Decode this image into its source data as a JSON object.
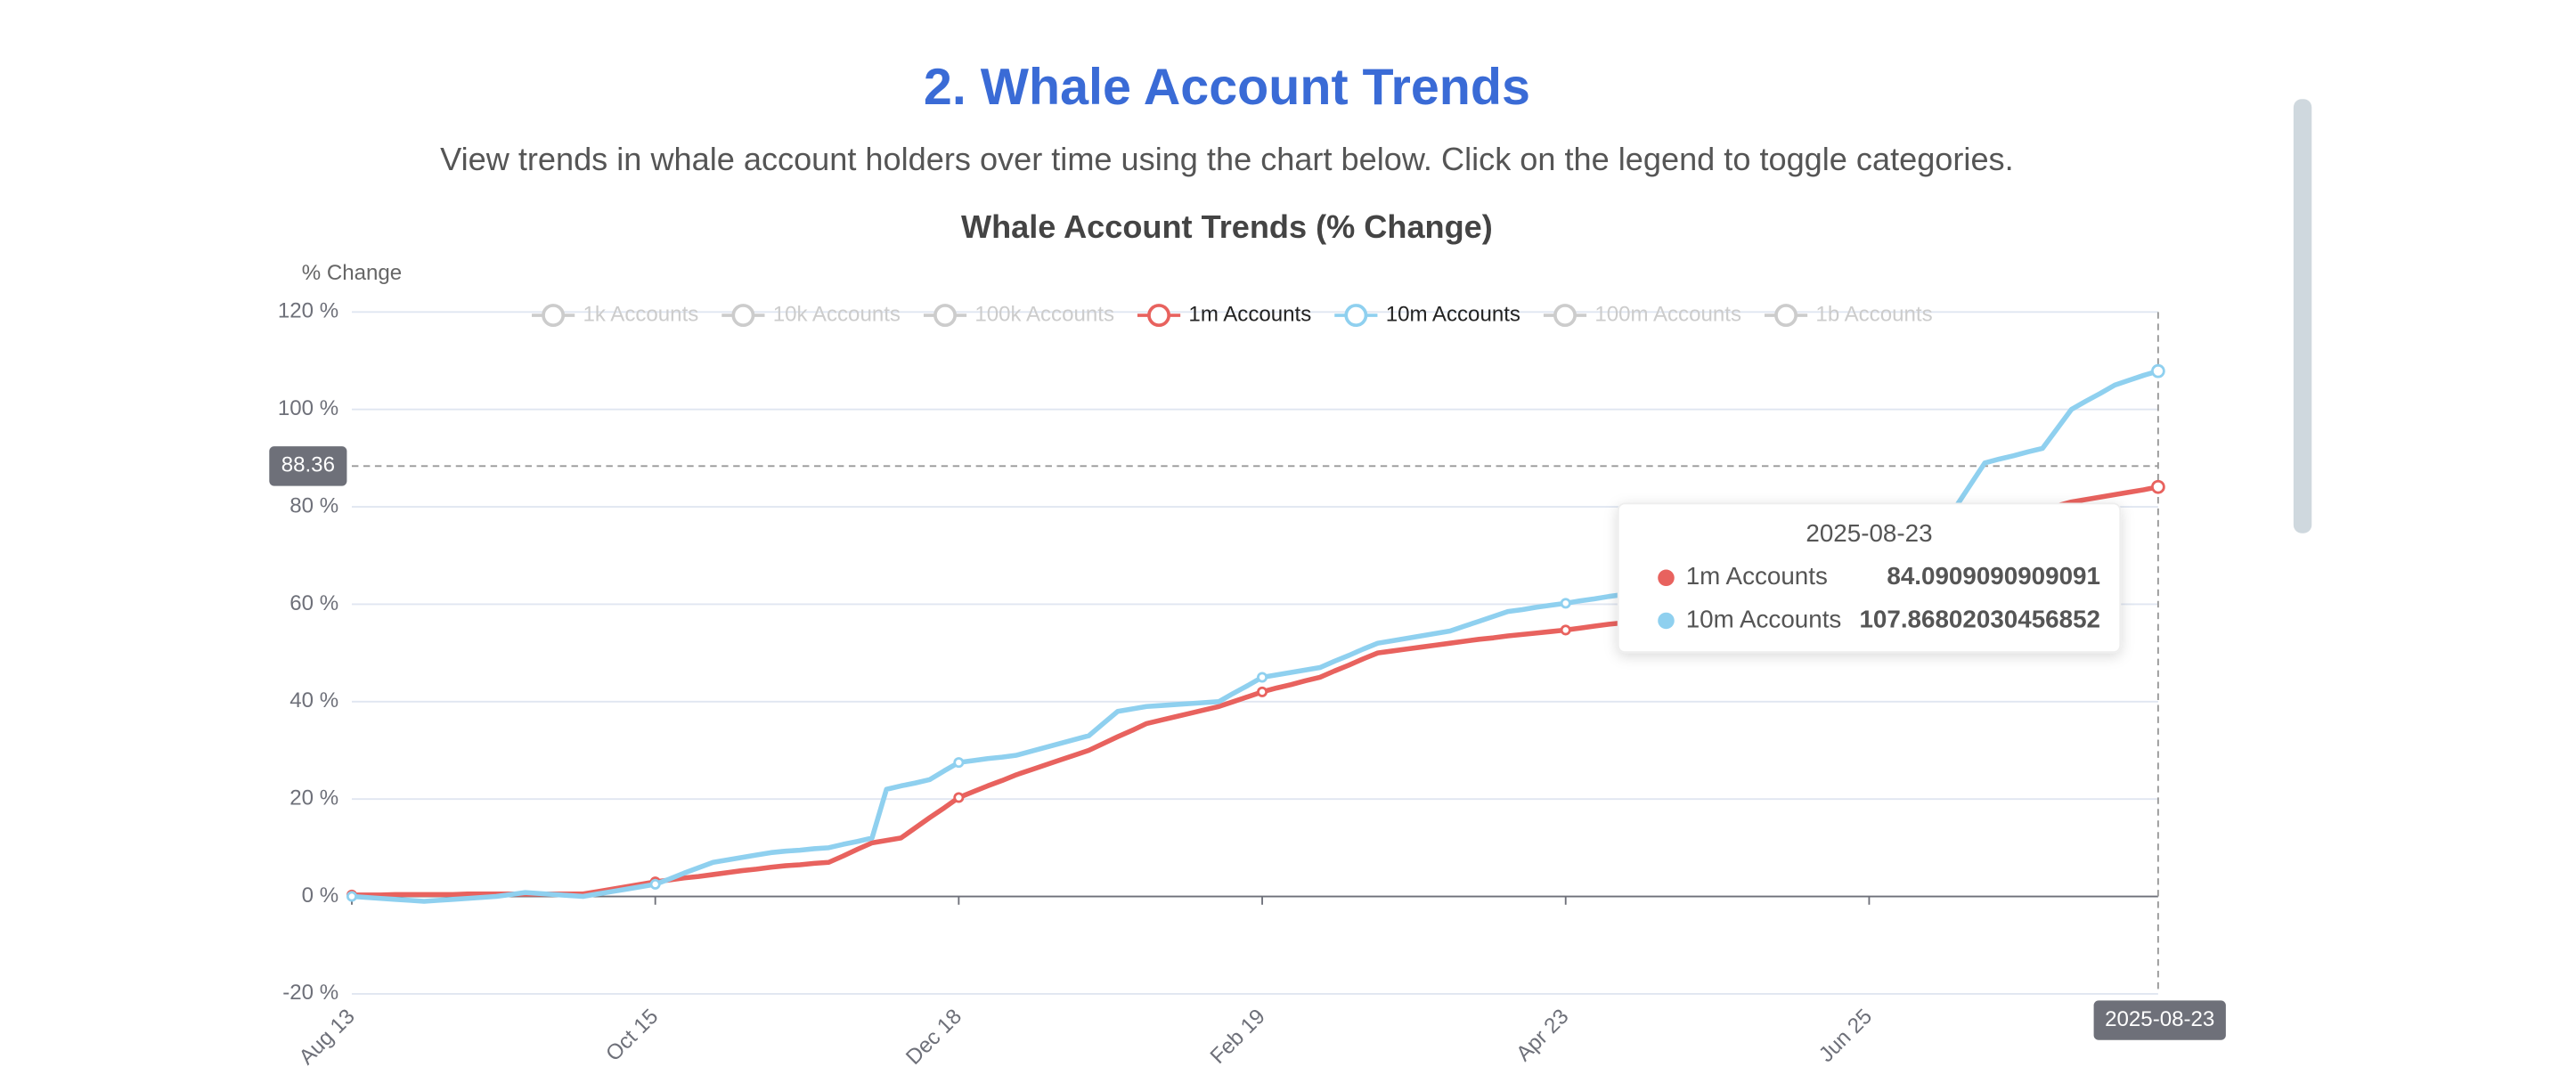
{
  "header": {
    "title": "2. Whale Account Trends",
    "subtitle": "View trends in whale account holders over time using the chart below. Click on the legend to toggle categories."
  },
  "chart_data": {
    "type": "line",
    "title": "Whale Account Trends (% Change)",
    "y_label": "% Change",
    "categories": [
      "Aug 13",
      null,
      null,
      null,
      null,
      null,
      null,
      null,
      null,
      null,
      null,
      null,
      null,
      null,
      null,
      null,
      null,
      null,
      null,
      null,
      null,
      "Oct 15",
      null,
      null,
      null,
      null,
      null,
      null,
      null,
      null,
      null,
      null,
      null,
      null,
      null,
      null,
      null,
      null,
      null,
      null,
      null,
      null,
      "Dec 18",
      null,
      null,
      null,
      null,
      null,
      null,
      null,
      null,
      null,
      null,
      null,
      null,
      null,
      null,
      null,
      null,
      null,
      null,
      null,
      null,
      "Feb 19",
      null,
      null,
      null,
      null,
      null,
      null,
      null,
      null,
      null,
      null,
      null,
      null,
      null,
      null,
      null,
      null,
      null,
      null,
      null,
      null,
      "Apr 23",
      null,
      null,
      null,
      null,
      null,
      null,
      null,
      null,
      null,
      null,
      null,
      null,
      null,
      null,
      null,
      null,
      null,
      null,
      null,
      null,
      "Jun 25",
      null,
      null,
      null,
      null,
      null,
      null,
      null,
      null,
      null,
      null,
      null,
      null,
      null,
      null,
      null,
      null,
      null,
      null,
      null,
      null
    ],
    "ylim": [
      -20,
      120
    ],
    "yticks": [
      {
        "value": -20,
        "label": "-20 %"
      },
      {
        "value": 0,
        "label": "0 %"
      },
      {
        "value": 20,
        "label": "20 %"
      },
      {
        "value": 40,
        "label": "40 %"
      },
      {
        "value": 60,
        "label": "60 %"
      },
      {
        "value": 80,
        "label": "80 %"
      },
      {
        "value": 100,
        "label": "100 %"
      },
      {
        "value": 120,
        "label": "120 %"
      }
    ],
    "grid": true,
    "inactive_color": "#cccccc",
    "series": [
      {
        "name": "1k Accounts",
        "visible": false
      },
      {
        "name": "10k Accounts",
        "visible": false
      },
      {
        "name": "100k Accounts",
        "visible": false
      },
      {
        "name": "1m Accounts",
        "color": "#e8625e",
        "visible": true,
        "values": [
          0.3,
          0.3,
          0.3,
          0.4,
          0.4,
          0.4,
          0.4,
          0.4,
          0.5,
          0.5,
          0.5,
          0.5,
          0.5,
          0.5,
          0.5,
          0.5,
          0.5,
          1.0,
          1.5,
          2.0,
          2.5,
          3.0,
          3.4,
          3.8,
          4.1,
          4.5,
          4.9,
          5.3,
          5.6,
          6.0,
          6.3,
          6.5,
          6.8,
          7.0,
          8.3,
          9.7,
          11.0,
          11.5,
          12.0,
          14.1,
          16.2,
          18.2,
          20.3,
          21.5,
          22.7,
          23.8,
          25.0,
          26,
          27,
          28,
          29,
          30,
          31.4,
          32.8,
          34.1,
          35.5,
          36.2,
          36.9,
          37.6,
          38.3,
          39,
          40,
          41,
          42,
          42.8,
          43.5,
          44.3,
          45,
          46.3,
          47.5,
          48.8,
          50,
          50.4,
          50.8,
          51.2,
          51.6,
          52,
          52.4,
          52.8,
          53.1,
          53.5,
          53.8,
          54.1,
          54.4,
          54.7,
          55.1,
          55.5,
          55.9,
          56.2,
          56.6,
          57,
          57.8,
          58.7,
          59.5,
          60.3,
          61.1,
          62.0,
          62.8,
          63.6,
          64.4,
          65.3,
          66.1,
          66.9,
          67.8,
          68.6,
          69.4,
          70.2,
          71.1,
          71.9,
          72.7,
          73.6,
          74.4,
          75.2,
          76.0,
          76.9,
          77.7,
          78.5,
          79.3,
          80.2,
          81,
          81.5,
          82.0,
          82.5,
          83.0,
          83.5,
          84.0909090909091
        ]
      },
      {
        "name": "10m Accounts",
        "color": "#8fd0ef",
        "visible": true,
        "values": [
          0,
          -0.2,
          -0.4,
          -0.6,
          -0.8,
          -1,
          -0.8,
          -0.6,
          -0.4,
          -0.2,
          0,
          0.4,
          0.8,
          0.6,
          0.4,
          0.2,
          0,
          0.5,
          1.0,
          1.5,
          2.0,
          2.5,
          3.6,
          4.8,
          5.9,
          7,
          7.5,
          8,
          8.5,
          9,
          9.3,
          9.5,
          9.8,
          10,
          10.7,
          11.3,
          12,
          22,
          22.7,
          23.3,
          24,
          25.8,
          27.5,
          27.9,
          28.3,
          28.6,
          29,
          29.8,
          30.6,
          31.4,
          32.2,
          33,
          35.5,
          38,
          38.5,
          39,
          39.2,
          39.4,
          39.6,
          39.8,
          40,
          41.7,
          43.3,
          45,
          45.5,
          46,
          46.5,
          47,
          48.3,
          49.5,
          50.8,
          52,
          52.5,
          53,
          53.5,
          54,
          54.5,
          55.5,
          56.5,
          57.5,
          58.5,
          58.9,
          59.4,
          59.8,
          60.2,
          60.7,
          61.1,
          61.6,
          62,
          62.7,
          63.5,
          64.2,
          64.9,
          65.6,
          66.4,
          67.1,
          67.8,
          68.5,
          69.3,
          70,
          70.7,
          71.5,
          72.2,
          72.9,
          73.6,
          74.4,
          75.1,
          75.8,
          76.5,
          77.3,
          78,
          80,
          84.5,
          89,
          89.8,
          90.5,
          91.3,
          92,
          96,
          100,
          101.7,
          103.3,
          105,
          106,
          107,
          107.86802030456852
        ]
      },
      {
        "name": "100m Accounts",
        "visible": false
      },
      {
        "name": "1b Accounts",
        "visible": false
      }
    ],
    "tooltip_date": "2025-08-23",
    "y_pointer": 88.36
  }
}
